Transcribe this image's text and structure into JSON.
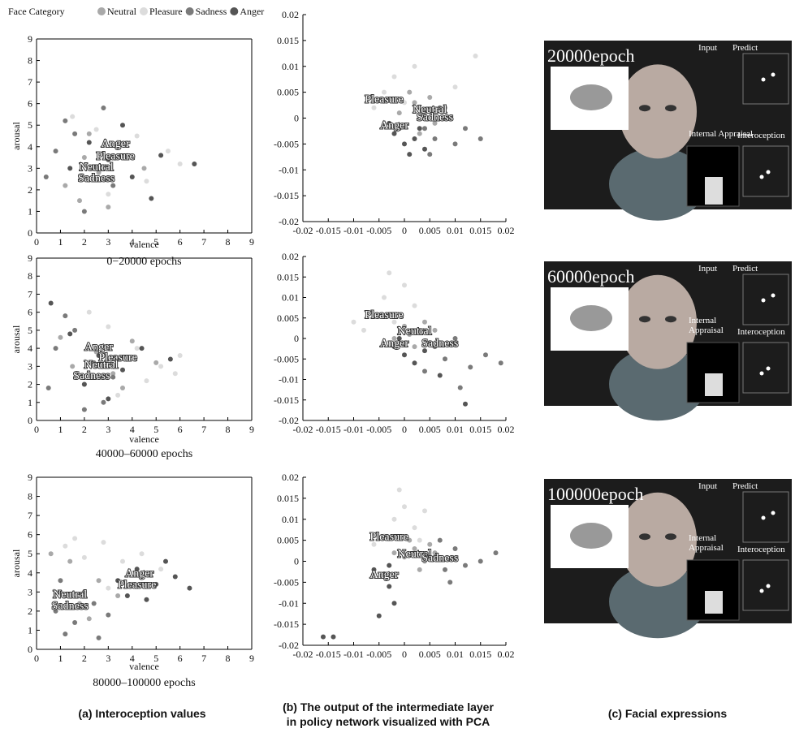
{
  "legend": {
    "title": "Face Category"
  },
  "chart_data": [
    {
      "type": "scatter",
      "x_label": "valence",
      "y_label": "arousal",
      "caption": "0−20000 epochs",
      "xlim": [
        0,
        9
      ],
      "ylim": [
        0,
        9
      ],
      "xticks": [
        0,
        1,
        2,
        3,
        4,
        5,
        6,
        7,
        8,
        9
      ],
      "yticks": [
        0,
        1,
        2,
        3,
        4,
        5,
        6,
        7,
        8,
        9
      ],
      "series": [
        {
          "name": "Neutral",
          "color": "#a9a9a9",
          "x": [
            1.2,
            2.0,
            2.6,
            3.4,
            4.5,
            1.8,
            3.0,
            2.2
          ],
          "y": [
            2.2,
            3.5,
            2.8,
            4.2,
            3.0,
            1.5,
            1.2,
            4.6
          ]
        },
        {
          "name": "Pleasure",
          "color": "#dcdcdc",
          "x": [
            2.5,
            3.8,
            4.6,
            5.5,
            3.0,
            6.0,
            1.5,
            4.2
          ],
          "y": [
            4.8,
            3.6,
            2.4,
            3.8,
            1.8,
            3.2,
            5.4,
            4.5
          ]
        },
        {
          "name": "Sadness",
          "color": "#7a7a7a",
          "x": [
            0.8,
            1.6,
            2.4,
            3.2,
            1.2,
            2.8,
            0.4,
            2.0
          ],
          "y": [
            3.8,
            4.6,
            3.0,
            2.2,
            5.2,
            5.8,
            2.6,
            1.0
          ]
        },
        {
          "name": "Anger",
          "color": "#555555",
          "x": [
            2.2,
            3.0,
            4.0,
            5.2,
            6.6,
            3.6,
            1.4,
            4.8
          ],
          "y": [
            4.2,
            3.4,
            2.6,
            3.6,
            3.2,
            5.0,
            3.0,
            1.6
          ]
        }
      ],
      "annotations": [
        {
          "text": "Anger",
          "x": 3.3,
          "y": 4.0
        },
        {
          "text": "Pleasure",
          "x": 3.3,
          "y": 3.4
        },
        {
          "text": "Neutral",
          "x": 2.5,
          "y": 2.9
        },
        {
          "text": "Sadness",
          "x": 2.5,
          "y": 2.4
        }
      ]
    },
    {
      "type": "scatter",
      "xlim": [
        -0.02,
        0.02
      ],
      "ylim": [
        -0.02,
        0.02
      ],
      "xticks": [
        -0.02,
        -0.015,
        -0.01,
        -0.005,
        0,
        0.005,
        0.01,
        0.015,
        0.02
      ],
      "yticks": [
        -0.02,
        -0.015,
        -0.01,
        -0.005,
        0,
        0.005,
        0.01,
        0.015,
        0.02
      ],
      "series": [
        {
          "name": "Neutral",
          "color": "#a9a9a9",
          "x": [
            0.002,
            0.004,
            0.006,
            0.001,
            0.008,
            0.003,
            -0.001,
            0.005
          ],
          "y": [
            0.003,
            0.001,
            -0.001,
            0.005,
            0.002,
            -0.003,
            0.001,
            0.004
          ]
        },
        {
          "name": "Pleasure",
          "color": "#dcdcdc",
          "x": [
            -0.004,
            -0.002,
            0.0,
            -0.006,
            0.002,
            0.01,
            0.014,
            -0.003
          ],
          "y": [
            0.005,
            0.008,
            0.003,
            0.002,
            0.01,
            0.006,
            0.012,
            -0.001
          ]
        },
        {
          "name": "Sadness",
          "color": "#7a7a7a",
          "x": [
            0.004,
            0.006,
            0.008,
            0.01,
            0.012,
            0.005,
            0.015,
            0.007
          ],
          "y": [
            -0.002,
            -0.004,
            0.0,
            -0.005,
            -0.002,
            -0.007,
            -0.004,
            0.002
          ]
        },
        {
          "name": "Anger",
          "color": "#555555",
          "x": [
            -0.002,
            0.0,
            0.002,
            -0.003,
            0.001,
            0.003,
            -0.001,
            0.004
          ],
          "y": [
            -0.003,
            -0.005,
            -0.004,
            -0.001,
            -0.007,
            -0.002,
            -0.002,
            -0.006
          ]
        }
      ],
      "annotations": [
        {
          "text": "Pleasure",
          "x": -0.004,
          "y": 0.003
        },
        {
          "text": "Neutral",
          "x": 0.005,
          "y": 0.001
        },
        {
          "text": "Sadness",
          "x": 0.006,
          "y": -0.0005
        },
        {
          "text": "Anger",
          "x": -0.002,
          "y": -0.002
        }
      ]
    },
    {
      "type": "scatter",
      "x_label": "valence",
      "y_label": "arousal",
      "caption": "40000–60000 epochs",
      "xlim": [
        0,
        9
      ],
      "ylim": [
        0,
        9
      ],
      "xticks": [
        0,
        1,
        2,
        3,
        4,
        5,
        6,
        7,
        8,
        9
      ],
      "yticks": [
        0,
        1,
        2,
        3,
        4,
        5,
        6,
        7,
        8,
        9
      ],
      "series": [
        {
          "name": "Neutral",
          "color": "#a9a9a9",
          "x": [
            1.5,
            2.5,
            3.2,
            4.0,
            5.0,
            2.0,
            3.6,
            1.0
          ],
          "y": [
            3.0,
            3.8,
            2.6,
            4.4,
            3.2,
            2.0,
            1.8,
            4.6
          ]
        },
        {
          "name": "Pleasure",
          "color": "#dcdcdc",
          "x": [
            3.0,
            4.2,
            5.2,
            6.0,
            2.2,
            4.6,
            5.8,
            3.4
          ],
          "y": [
            5.2,
            4.0,
            3.0,
            3.6,
            6.0,
            2.2,
            2.6,
            1.4
          ]
        },
        {
          "name": "Sadness",
          "color": "#7a7a7a",
          "x": [
            0.8,
            1.6,
            2.4,
            3.2,
            1.2,
            2.8,
            0.5,
            2.0
          ],
          "y": [
            4.0,
            5.0,
            3.2,
            2.4,
            5.8,
            1.0,
            1.8,
            0.6
          ]
        },
        {
          "name": "Anger",
          "color": "#555555",
          "x": [
            1.4,
            2.6,
            3.6,
            4.4,
            5.6,
            2.0,
            3.0,
            0.6
          ],
          "y": [
            4.8,
            3.6,
            2.8,
            4.0,
            3.4,
            2.0,
            1.2,
            6.5
          ]
        }
      ],
      "annotations": [
        {
          "text": "Anger",
          "x": 2.6,
          "y": 3.9
        },
        {
          "text": "Pleasure",
          "x": 3.4,
          "y": 3.3
        },
        {
          "text": "Neutral",
          "x": 2.7,
          "y": 2.9
        },
        {
          "text": "Sadness",
          "x": 2.3,
          "y": 2.3
        }
      ]
    },
    {
      "type": "scatter",
      "xlim": [
        -0.02,
        0.02
      ],
      "ylim": [
        -0.02,
        0.02
      ],
      "xticks": [
        -0.02,
        -0.015,
        -0.01,
        -0.005,
        0,
        0.005,
        0.01,
        0.015,
        0.02
      ],
      "yticks": [
        -0.02,
        -0.015,
        -0.01,
        -0.005,
        0,
        0.005,
        0.01,
        0.015,
        0.02
      ],
      "series": [
        {
          "name": "Neutral",
          "color": "#a9a9a9",
          "x": [
            0.001,
            0.003,
            0.005,
            0.0,
            0.002,
            0.006,
            -0.002,
            0.004
          ],
          "y": [
            0.001,
            0.002,
            -0.001,
            0.003,
            -0.002,
            0.002,
            0.0,
            0.004
          ]
        },
        {
          "name": "Pleasure",
          "color": "#dcdcdc",
          "x": [
            -0.006,
            -0.004,
            -0.002,
            0.0,
            -0.008,
            -0.003,
            0.002,
            -0.01
          ],
          "y": [
            0.006,
            0.01,
            0.004,
            0.013,
            0.002,
            0.016,
            0.008,
            0.004
          ]
        },
        {
          "name": "Sadness",
          "color": "#7a7a7a",
          "x": [
            0.006,
            0.008,
            0.01,
            0.013,
            0.016,
            0.004,
            0.019,
            0.011
          ],
          "y": [
            -0.002,
            -0.005,
            0.0,
            -0.007,
            -0.004,
            -0.008,
            -0.006,
            -0.012
          ]
        },
        {
          "name": "Anger",
          "color": "#555555",
          "x": [
            -0.002,
            0.0,
            -0.004,
            0.002,
            -0.001,
            0.004,
            0.007,
            0.012
          ],
          "y": [
            -0.002,
            -0.004,
            -0.001,
            -0.006,
            0.0,
            -0.003,
            -0.009,
            -0.016
          ]
        }
      ],
      "annotations": [
        {
          "text": "Pleasure",
          "x": -0.004,
          "y": 0.005
        },
        {
          "text": "Neutral",
          "x": 0.002,
          "y": 0.001
        },
        {
          "text": "Anger",
          "x": -0.002,
          "y": -0.002
        },
        {
          "text": "Sadness",
          "x": 0.007,
          "y": -0.002
        }
      ]
    },
    {
      "type": "scatter",
      "x_label": "valence",
      "y_label": "arousal",
      "caption": "80000–100000 epochs",
      "xlim": [
        0,
        9
      ],
      "ylim": [
        0,
        9
      ],
      "xticks": [
        0,
        1,
        2,
        3,
        4,
        5,
        6,
        7,
        8,
        9
      ],
      "yticks": [
        0,
        1,
        2,
        3,
        4,
        5,
        6,
        7,
        8,
        9
      ],
      "series": [
        {
          "name": "Neutral",
          "color": "#a9a9a9",
          "x": [
            1.0,
            1.8,
            2.6,
            3.4,
            1.4,
            2.2,
            4.0,
            0.6
          ],
          "y": [
            3.0,
            2.4,
            3.6,
            2.8,
            4.6,
            1.6,
            3.4,
            5.0
          ]
        },
        {
          "name": "Pleasure",
          "color": "#dcdcdc",
          "x": [
            1.2,
            2.0,
            2.8,
            3.6,
            4.4,
            5.2,
            1.6,
            3.0
          ],
          "y": [
            5.4,
            4.8,
            5.6,
            4.6,
            5.0,
            4.2,
            5.8,
            3.2
          ]
        },
        {
          "name": "Sadness",
          "color": "#7a7a7a",
          "x": [
            0.8,
            1.6,
            2.4,
            1.2,
            2.0,
            3.0,
            1.0,
            2.6
          ],
          "y": [
            2.0,
            1.4,
            2.4,
            0.8,
            3.0,
            1.8,
            3.6,
            0.6
          ]
        },
        {
          "name": "Anger",
          "color": "#555555",
          "x": [
            3.4,
            4.2,
            5.0,
            5.8,
            4.6,
            3.8,
            6.4,
            5.4
          ],
          "y": [
            3.6,
            4.2,
            3.4,
            3.8,
            2.6,
            2.8,
            3.2,
            4.6
          ]
        }
      ],
      "annotations": [
        {
          "text": "Anger",
          "x": 4.3,
          "y": 3.8
        },
        {
          "text": "Pleasure",
          "x": 4.2,
          "y": 3.2
        },
        {
          "text": "Neutral",
          "x": 1.4,
          "y": 2.7
        },
        {
          "text": "Sadness",
          "x": 1.4,
          "y": 2.1
        }
      ]
    },
    {
      "type": "scatter",
      "xlim": [
        -0.02,
        0.02
      ],
      "ylim": [
        -0.02,
        0.02
      ],
      "xticks": [
        -0.02,
        -0.015,
        -0.01,
        -0.005,
        0,
        0.005,
        0.01,
        0.015,
        0.02
      ],
      "yticks": [
        -0.02,
        -0.015,
        -0.01,
        -0.005,
        0,
        0.005,
        0.01,
        0.015,
        0.02
      ],
      "series": [
        {
          "name": "Neutral",
          "color": "#a9a9a9",
          "x": [
            0.0,
            0.002,
            0.004,
            0.006,
            -0.002,
            0.003,
            0.001,
            0.005
          ],
          "y": [
            0.001,
            0.003,
            0.0,
            0.002,
            0.002,
            -0.002,
            0.005,
            0.004
          ]
        },
        {
          "name": "Pleasure",
          "color": "#dcdcdc",
          "x": [
            -0.004,
            -0.002,
            0.0,
            0.002,
            -0.006,
            0.004,
            -0.001,
            0.003
          ],
          "y": [
            0.006,
            0.01,
            0.013,
            0.008,
            0.004,
            0.012,
            0.017,
            0.005
          ]
        },
        {
          "name": "Sadness",
          "color": "#7a7a7a",
          "x": [
            0.006,
            0.008,
            0.01,
            0.012,
            0.015,
            0.007,
            0.018,
            0.009
          ],
          "y": [
            0.001,
            -0.002,
            0.003,
            -0.001,
            0.0,
            0.005,
            0.002,
            -0.005
          ]
        },
        {
          "name": "Anger",
          "color": "#555555",
          "x": [
            -0.004,
            -0.003,
            -0.002,
            -0.005,
            -0.006,
            -0.003,
            -0.014,
            -0.016
          ],
          "y": [
            -0.003,
            -0.006,
            -0.01,
            -0.013,
            -0.002,
            -0.001,
            -0.018,
            -0.018
          ]
        }
      ],
      "annotations": [
        {
          "text": "Pleasure",
          "x": -0.003,
          "y": 0.005
        },
        {
          "text": "Neutral",
          "x": 0.002,
          "y": 0.001
        },
        {
          "text": "Sadness",
          "x": 0.007,
          "y": 0
        },
        {
          "text": "Anger",
          "x": -0.004,
          "y": -0.004
        }
      ]
    }
  ],
  "panels": [
    {
      "epoch": "20000epoch",
      "input": "Input",
      "predict": "Predict",
      "appraisal": [
        "Internal Appraisal"
      ],
      "interoception": "Interoception"
    },
    {
      "epoch": "60000epoch",
      "input": "Input",
      "predict": "Predict",
      "appraisal": [
        "Internal",
        "Appraisal"
      ],
      "interoception": "Interoception"
    },
    {
      "epoch": "100000epoch",
      "input": "Input",
      "predict": "Predict",
      "appraisal": [
        "Internal",
        "Appraisal"
      ],
      "interoception": "Interoception"
    }
  ],
  "captions": {
    "a": "(a) Interoception values",
    "b": [
      "(b) The output of the intermediate layer",
      "in policy network visualized with PCA"
    ],
    "c": "(c) Facial expressions"
  }
}
